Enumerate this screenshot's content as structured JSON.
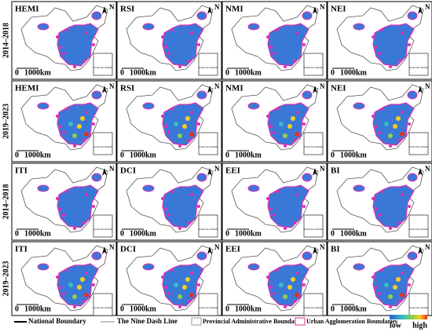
{
  "panels": [
    {
      "label": "HEMI"
    },
    {
      "label": "RSI"
    },
    {
      "label": "NMI"
    },
    {
      "label": "NEI"
    },
    {
      "label": "HEMI"
    },
    {
      "label": "RSI"
    },
    {
      "label": "NMI"
    },
    {
      "label": "NEI"
    },
    {
      "label": "ITI"
    },
    {
      "label": "DCI"
    },
    {
      "label": "EEI"
    },
    {
      "label": "BI"
    },
    {
      "label": "ITI"
    },
    {
      "label": "DCI"
    },
    {
      "label": "EEI"
    },
    {
      "label": "BI"
    }
  ],
  "row_labels": [
    "2014–2018",
    "2019–2023",
    "2014–2018",
    "2019–2023"
  ],
  "north_label": "N",
  "scale_bar": {
    "start": "0",
    "end": "1000km"
  },
  "inset_label": "South Sea Islands",
  "legend": {
    "national_boundary": "National Boundary",
    "nine_dash_line": "The Nine Dash Line",
    "provincial": "Provincial Administrative Boundaries",
    "urban_agglomeration": "Urban Agglomeration Boundaries",
    "low": "low",
    "high": "high"
  }
}
